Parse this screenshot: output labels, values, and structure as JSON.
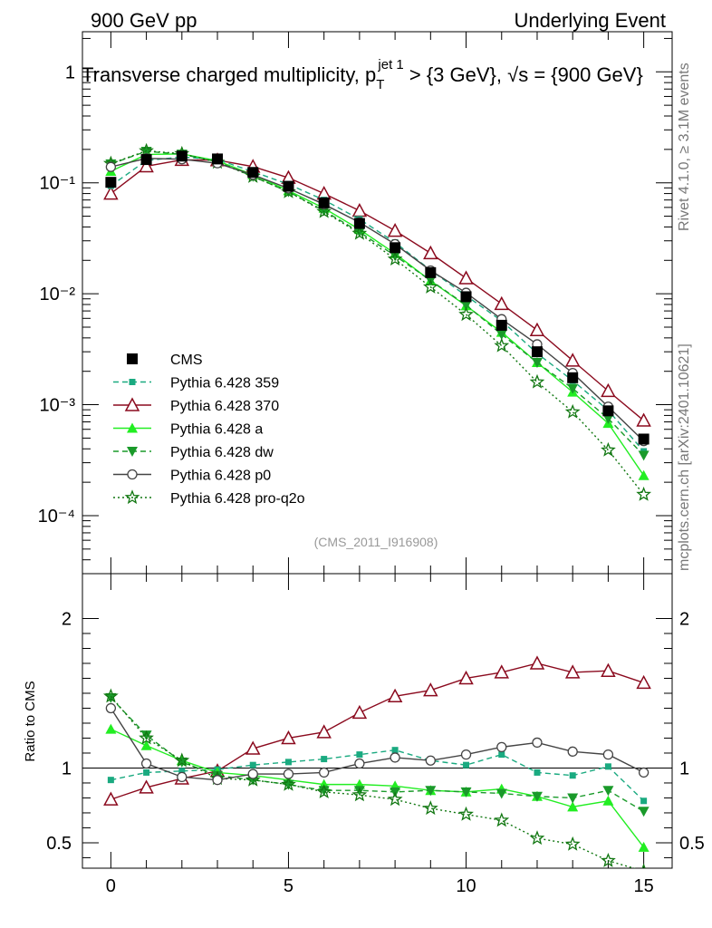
{
  "header": {
    "left": "900 GeV pp",
    "right": "Underlying Event"
  },
  "title": {
    "main": "Transverse charged multiplicity, p",
    "sub": "T",
    "sup": "jet 1",
    "rest": " > {3 GeV}, √s = {900 GeV}"
  },
  "side_labels": {
    "rivet": "Rivet 4.1.0, ≥ 3.1M events",
    "mcplots": "mcplots.cern.ch [arXiv:2401.10621]"
  },
  "watermark": "(CMS_2011_I916908)",
  "ratio_ylabel": "Ratio to CMS",
  "colors": {
    "cms": "#000000",
    "p359": "#1aaa80",
    "p370": "#8b0a1e",
    "pa": "#22ee22",
    "pdw": "#1a9a2a",
    "pp0": "#444444",
    "pq2o": "#117711"
  },
  "chart_data": [
    {
      "type": "scatter",
      "role": "main",
      "yscale": "log",
      "xlim": [
        -0.8,
        15.8
      ],
      "ylim": [
        3e-05,
        2.3
      ],
      "x_ticks": [
        0,
        5,
        10,
        15
      ],
      "y_tick_labels": [
        "1",
        "10⁻¹",
        "10⁻²",
        "10⁻³",
        "10⁻⁴"
      ],
      "x": [
        0,
        1,
        2,
        3,
        4,
        5,
        6,
        7,
        8,
        9,
        10,
        11,
        12,
        13,
        14,
        15
      ],
      "series": [
        {
          "name": "CMS",
          "key": "cms",
          "marker": "square",
          "line": "none",
          "values": [
            0.101,
            0.162,
            0.174,
            0.164,
            0.124,
            0.093,
            0.066,
            0.043,
            0.026,
            0.0155,
            0.0094,
            0.0052,
            0.003,
            0.00175,
            0.00088,
            0.00049
          ]
        },
        {
          "name": "Pythia 6.428 359",
          "key": "p359",
          "marker": "square-small",
          "line": "dashed",
          "values": [
            0.094,
            0.159,
            0.171,
            0.162,
            0.126,
            0.097,
            0.07,
            0.047,
            0.029,
            0.0163,
            0.0096,
            0.0057,
            0.0029,
            0.00165,
            0.00089,
            0.00038
          ]
        },
        {
          "name": "Pythia 6.428 370",
          "key": "p370",
          "marker": "triangle-open",
          "line": "solid",
          "values": [
            0.08,
            0.141,
            0.161,
            0.16,
            0.14,
            0.111,
            0.08,
            0.056,
            0.037,
            0.0232,
            0.0138,
            0.0081,
            0.0047,
            0.0025,
            0.00133,
            0.00072
          ]
        },
        {
          "name": "Pythia 6.428 a",
          "key": "pa",
          "marker": "triangle-filled",
          "line": "solid",
          "values": [
            0.127,
            0.18,
            0.182,
            0.158,
            0.118,
            0.085,
            0.059,
            0.038,
            0.023,
            0.0131,
            0.0078,
            0.0045,
            0.0024,
            0.0013,
            0.00068,
            0.00023
          ]
        },
        {
          "name": "Pythia 6.428 dw",
          "key": "pdw",
          "marker": "triangle-down",
          "line": "dashed",
          "values": [
            0.148,
            0.192,
            0.181,
            0.155,
            0.114,
            0.083,
            0.056,
            0.036,
            0.022,
            0.0132,
            0.0079,
            0.0043,
            0.0024,
            0.0014,
            0.00075,
            0.00035
          ]
        },
        {
          "name": "Pythia 6.428 p0",
          "key": "pp0",
          "marker": "circle-open",
          "line": "solid",
          "values": [
            0.139,
            0.166,
            0.163,
            0.15,
            0.118,
            0.089,
            0.064,
            0.044,
            0.028,
            0.0162,
            0.0102,
            0.0059,
            0.0035,
            0.00193,
            0.00096,
            0.00047
          ]
        },
        {
          "name": "Pythia 6.428 pro-q2o",
          "key": "pq2o",
          "marker": "star-open",
          "line": "dotted",
          "values": [
            0.149,
            0.194,
            0.183,
            0.153,
            0.114,
            0.083,
            0.055,
            0.035,
            0.0205,
            0.0115,
            0.0065,
            0.0034,
            0.0016,
            0.00086,
            0.00039,
            0.000155
          ]
        }
      ]
    },
    {
      "type": "scatter",
      "role": "ratio",
      "yscale": "linear",
      "xlim": [
        -0.8,
        15.8
      ],
      "ylim": [
        0.33,
        2.3
      ],
      "ylabel": "Ratio to CMS",
      "x_ticks": [
        0,
        5,
        10,
        15
      ],
      "x_tick_labels": [
        "0",
        "5",
        "10",
        "15"
      ],
      "y_ticks": [
        0.5,
        1,
        2
      ],
      "y_tick_labels": [
        "0.5",
        "1",
        "2"
      ],
      "x": [
        0,
        1,
        2,
        3,
        4,
        5,
        6,
        7,
        8,
        9,
        10,
        11,
        12,
        13,
        14,
        15
      ],
      "series": [
        {
          "name": "Pythia 6.428 359",
          "key": "p359",
          "values": [
            0.92,
            0.97,
            0.98,
            0.99,
            1.02,
            1.04,
            1.06,
            1.09,
            1.12,
            1.05,
            1.02,
            1.09,
            0.97,
            0.95,
            1.01,
            0.78
          ]
        },
        {
          "name": "Pythia 6.428 370",
          "key": "p370",
          "values": [
            0.79,
            0.87,
            0.93,
            0.98,
            1.13,
            1.2,
            1.24,
            1.37,
            1.48,
            1.52,
            1.6,
            1.64,
            1.7,
            1.64,
            1.65,
            1.57
          ]
        },
        {
          "name": "Pythia 6.428 a",
          "key": "pa",
          "values": [
            1.26,
            1.15,
            1.05,
            0.97,
            0.95,
            0.92,
            0.89,
            0.89,
            0.88,
            0.85,
            0.84,
            0.86,
            0.81,
            0.74,
            0.78,
            0.47
          ]
        },
        {
          "name": "Pythia 6.428 dw",
          "key": "pdw",
          "values": [
            1.47,
            1.22,
            1.04,
            0.95,
            0.92,
            0.89,
            0.85,
            0.85,
            0.84,
            0.85,
            0.84,
            0.83,
            0.81,
            0.8,
            0.85,
            0.71
          ]
        },
        {
          "name": "Pythia 6.428 p0",
          "key": "pp0",
          "values": [
            1.4,
            1.03,
            0.94,
            0.92,
            0.96,
            0.96,
            0.97,
            1.03,
            1.07,
            1.05,
            1.09,
            1.14,
            1.17,
            1.11,
            1.09,
            0.97
          ]
        },
        {
          "name": "Pythia 6.428 pro-q2o",
          "key": "pq2o",
          "values": [
            1.48,
            1.2,
            1.05,
            0.93,
            0.92,
            0.89,
            0.84,
            0.82,
            0.79,
            0.73,
            0.69,
            0.65,
            0.53,
            0.49,
            0.38,
            0.31
          ]
        }
      ]
    }
  ]
}
